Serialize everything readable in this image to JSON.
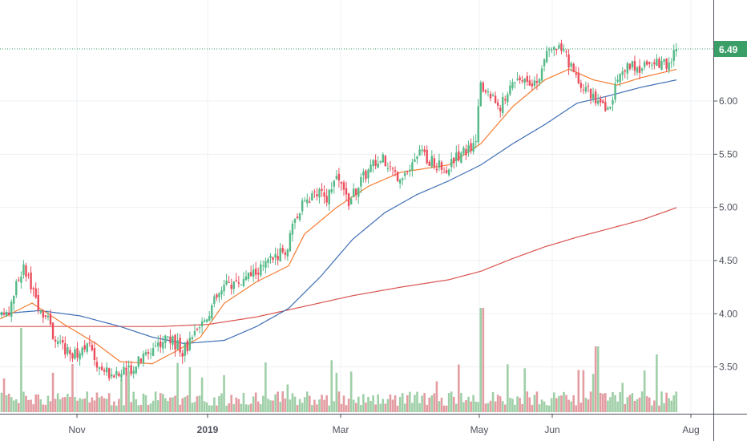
{
  "chart_data": {
    "type": "candlestick",
    "x_ticks": [
      "Nov",
      "2019",
      "Mar",
      "May",
      "Jun",
      "Aug"
    ],
    "y_ticks": [
      3.5,
      4.0,
      4.5,
      5.0,
      5.5,
      6.0
    ],
    "y_tick_labels": [
      "3.50",
      "4.00",
      "4.50",
      "5.00",
      "5.50",
      "6.00"
    ],
    "ylim": [
      3.06,
      6.95
    ],
    "last_price": 6.49,
    "last_price_label": "6.49",
    "grid": true,
    "colors": {
      "up": "#53b987",
      "down": "#eb4d5c",
      "ma_fast": "#f57c32",
      "ma_mid": "#3f6fb5",
      "ma_slow": "#d9544f",
      "price_line": "#3a9e67",
      "volume_up": "#9fcfa7",
      "volume_down": "#e39ca1"
    },
    "price_anchors": [
      [
        0,
        3.95
      ],
      [
        12,
        4.05
      ],
      [
        22,
        4.3
      ],
      [
        30,
        4.45
      ],
      [
        38,
        4.25
      ],
      [
        50,
        4.05
      ],
      [
        62,
        3.9
      ],
      [
        72,
        3.7
      ],
      [
        80,
        3.68
      ],
      [
        95,
        3.6
      ],
      [
        108,
        3.75
      ],
      [
        120,
        3.55
      ],
      [
        135,
        3.45
      ],
      [
        150,
        3.42
      ],
      [
        165,
        3.5
      ],
      [
        180,
        3.6
      ],
      [
        195,
        3.72
      ],
      [
        210,
        3.78
      ],
      [
        228,
        3.65
      ],
      [
        240,
        3.75
      ],
      [
        255,
        3.95
      ],
      [
        270,
        4.15
      ],
      [
        285,
        4.28
      ],
      [
        300,
        4.3
      ],
      [
        315,
        4.38
      ],
      [
        330,
        4.45
      ],
      [
        345,
        4.55
      ],
      [
        358,
        4.6
      ],
      [
        368,
        4.88
      ],
      [
        380,
        5.05
      ],
      [
        395,
        5.12
      ],
      [
        410,
        5.1
      ],
      [
        420,
        5.3
      ],
      [
        435,
        5.05
      ],
      [
        450,
        5.25
      ],
      [
        465,
        5.4
      ],
      [
        480,
        5.45
      ],
      [
        495,
        5.3
      ],
      [
        510,
        5.35
      ],
      [
        525,
        5.5
      ],
      [
        540,
        5.42
      ],
      [
        555,
        5.35
      ],
      [
        565,
        5.45
      ],
      [
        580,
        5.55
      ],
      [
        592,
        5.55
      ],
      [
        600,
        6.15
      ],
      [
        612,
        6.05
      ],
      [
        625,
        5.95
      ],
      [
        640,
        6.2
      ],
      [
        655,
        6.25
      ],
      [
        668,
        6.15
      ],
      [
        680,
        6.4
      ],
      [
        695,
        6.5
      ],
      [
        705,
        6.45
      ],
      [
        715,
        6.25
      ],
      [
        730,
        6.15
      ],
      [
        745,
        6.0
      ],
      [
        758,
        5.9
      ],
      [
        770,
        6.2
      ],
      [
        785,
        6.35
      ],
      [
        800,
        6.28
      ],
      [
        815,
        6.38
      ],
      [
        828,
        6.33
      ],
      [
        838,
        6.42
      ],
      [
        845,
        6.49
      ]
    ],
    "ma_fast_anchors": [
      [
        0,
        3.95
      ],
      [
        40,
        4.1
      ],
      [
        80,
        3.9
      ],
      [
        120,
        3.72
      ],
      [
        150,
        3.55
      ],
      [
        190,
        3.53
      ],
      [
        220,
        3.65
      ],
      [
        250,
        3.78
      ],
      [
        280,
        4.1
      ],
      [
        320,
        4.3
      ],
      [
        360,
        4.45
      ],
      [
        380,
        4.75
      ],
      [
        420,
        5.0
      ],
      [
        460,
        5.2
      ],
      [
        500,
        5.33
      ],
      [
        560,
        5.4
      ],
      [
        600,
        5.6
      ],
      [
        640,
        5.95
      ],
      [
        680,
        6.2
      ],
      [
        710,
        6.3
      ],
      [
        740,
        6.2
      ],
      [
        770,
        6.15
      ],
      [
        800,
        6.22
      ],
      [
        845,
        6.3
      ]
    ],
    "ma_mid_anchors": [
      [
        0,
        4.0
      ],
      [
        50,
        4.03
      ],
      [
        100,
        3.98
      ],
      [
        150,
        3.88
      ],
      [
        190,
        3.78
      ],
      [
        230,
        3.72
      ],
      [
        280,
        3.75
      ],
      [
        320,
        3.88
      ],
      [
        360,
        4.05
      ],
      [
        400,
        4.35
      ],
      [
        440,
        4.7
      ],
      [
        480,
        4.95
      ],
      [
        520,
        5.12
      ],
      [
        560,
        5.25
      ],
      [
        600,
        5.4
      ],
      [
        640,
        5.6
      ],
      [
        680,
        5.78
      ],
      [
        720,
        5.98
      ],
      [
        760,
        6.05
      ],
      [
        800,
        6.13
      ],
      [
        845,
        6.2
      ]
    ],
    "ma_slow_anchors": [
      [
        0,
        3.88
      ],
      [
        60,
        3.88
      ],
      [
        120,
        3.88
      ],
      [
        200,
        3.88
      ],
      [
        260,
        3.9
      ],
      [
        320,
        3.97
      ],
      [
        380,
        4.07
      ],
      [
        440,
        4.17
      ],
      [
        500,
        4.25
      ],
      [
        560,
        4.32
      ],
      [
        600,
        4.4
      ],
      [
        640,
        4.52
      ],
      [
        680,
        4.63
      ],
      [
        720,
        4.72
      ],
      [
        760,
        4.8
      ],
      [
        800,
        4.88
      ],
      [
        845,
        5.0
      ]
    ]
  }
}
